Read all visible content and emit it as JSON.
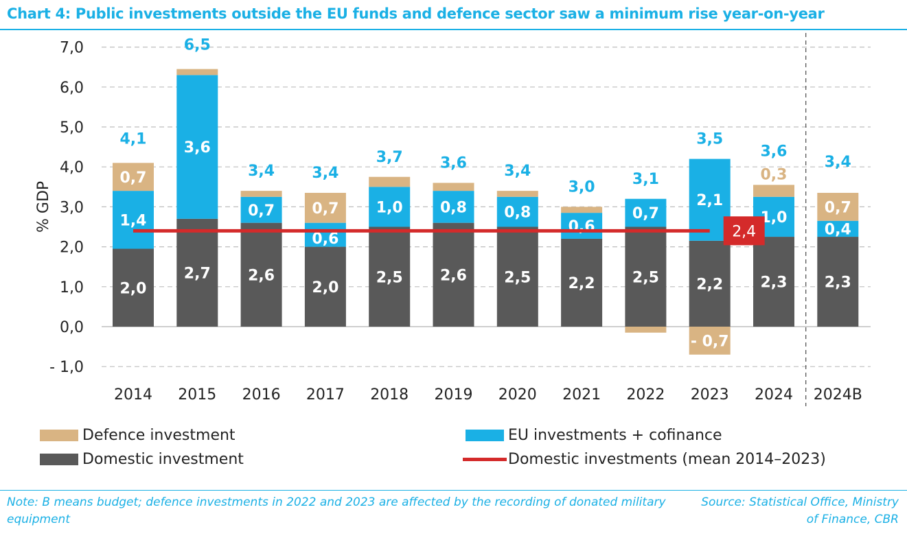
{
  "title": "Chart 4: Public investments outside the EU funds and defence sector saw a minimum rise year-on-year",
  "note": "Note: B means budget; defence investments in 2022 and 2023 are affected by the recording of donated military equipment",
  "source": "Source: Statistical Office, Ministry of Finance, CBR",
  "legend": {
    "defence": "Defence investment",
    "eu": "EU investments + cofinance",
    "domestic": "Domestic investment",
    "mean": "Domestic investments (mean 2014–2023)"
  },
  "colors": {
    "domestic": "#595959",
    "eu": "#1ab0e5",
    "defence": "#d9b483",
    "mean": "#d42a2a",
    "title": "#1ab0e5"
  },
  "chart_data": {
    "type": "bar",
    "stacked": true,
    "ylabel": "% GDP",
    "ylim": [
      -1.0,
      7.0
    ],
    "yticks": [
      "- 1,0",
      "0,0",
      "1,0",
      "2,0",
      "3,0",
      "4,0",
      "5,0",
      "6,0",
      "7,0"
    ],
    "categories": [
      "2014",
      "2015",
      "2016",
      "2017",
      "2018",
      "2019",
      "2020",
      "2021",
      "2022",
      "2023",
      "2024",
      "2024B"
    ],
    "series": [
      {
        "name": "Domestic investment",
        "key": "domestic",
        "values": [
          1.95,
          2.7,
          2.6,
          2.0,
          2.5,
          2.6,
          2.5,
          2.2,
          2.5,
          2.15,
          2.25,
          2.25
        ],
        "labels": [
          "2,0",
          "2,7",
          "2,6",
          "2,0",
          "2,5",
          "2,6",
          "2,5",
          "2,2",
          "2,5",
          "2,2",
          "2,3",
          "2,3"
        ]
      },
      {
        "name": "EU investments + cofinance",
        "key": "eu",
        "values": [
          1.45,
          3.6,
          0.65,
          0.6,
          1.0,
          0.8,
          0.75,
          0.65,
          0.7,
          2.05,
          1.0,
          0.4
        ],
        "labels": [
          "1,4",
          "3,6",
          "0,7",
          "0,6",
          "1,0",
          "0,8",
          "0,8",
          "0,6",
          "0,7",
          "2,1",
          "1,0",
          "0,4"
        ]
      },
      {
        "name": "Defence investment",
        "key": "defence",
        "values": [
          0.7,
          0.15,
          0.15,
          0.75,
          0.25,
          0.2,
          0.15,
          0.15,
          -0.15,
          -0.7,
          0.3,
          0.7
        ],
        "labels": [
          "0,7",
          "",
          "",
          "0,7",
          "",
          "",
          "",
          "",
          "",
          "- 0,7",
          "0,3",
          "0,7"
        ]
      }
    ],
    "totals": [
      "4,1",
      "6,5",
      "3,4",
      "3,4",
      "3,7",
      "3,6",
      "3,4",
      "3,0",
      "3,1",
      "3,5",
      "3,6",
      "3,4"
    ],
    "mean_line": {
      "name": "Domestic investments (mean 2014–2023)",
      "value": 2.4,
      "label": "2,4"
    },
    "budget_separator_after": "2024"
  }
}
